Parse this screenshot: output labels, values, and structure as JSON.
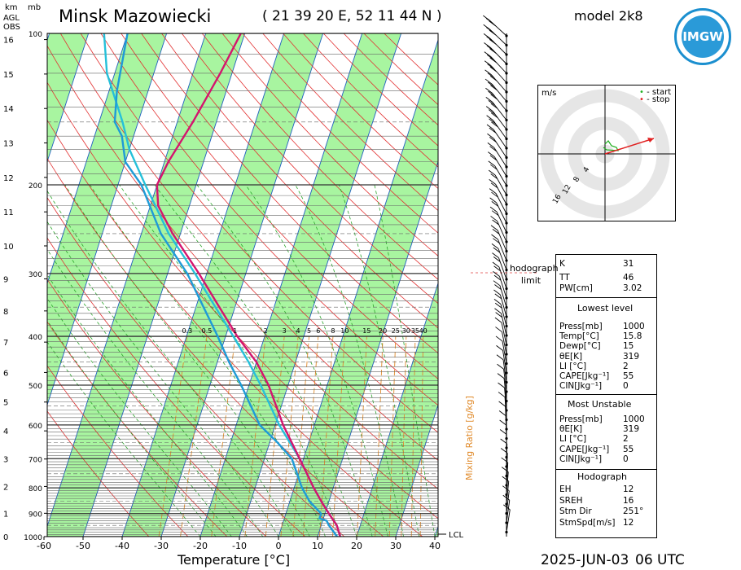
{
  "header": {
    "station": "Minsk Mazowiecki",
    "coords": "( 21 39 20 E, 52 11 44 N )",
    "model": "model 2k8",
    "logo": "IMGW",
    "date": "2025-JUN-03",
    "time": "06 UTC",
    "km_label": "km",
    "agl_label": "AGL",
    "obs_label": "OBS",
    "mb_label": "mb"
  },
  "chart_data": {
    "type": "skew-t",
    "xlabel": "Temperature [°C]",
    "xticks": [
      "-60",
      "-50",
      "-40",
      "-30",
      "-20",
      "-10",
      "0",
      "10",
      "20",
      "30",
      "40"
    ],
    "pressure_ticks": [
      100,
      200,
      300,
      400,
      500,
      600,
      700,
      800,
      900,
      1000
    ],
    "height_ticks_km": [
      0,
      1,
      2,
      3,
      4,
      5,
      6,
      7,
      8,
      9,
      10,
      11,
      12,
      13,
      14,
      15,
      16
    ],
    "mixing_ratio_label": "Mixing Ratio [g/kg]",
    "mixing_ratios": [
      "0.3",
      "0.5",
      "1",
      "2",
      "3",
      "4",
      "5",
      "6",
      "8",
      "10",
      "15",
      "20",
      "25",
      "30",
      "35",
      "40"
    ],
    "lcl_label": "LCL",
    "temperature": [
      [
        1000,
        15.8
      ],
      [
        950,
        14
      ],
      [
        900,
        11
      ],
      [
        850,
        8
      ],
      [
        800,
        5
      ],
      [
        700,
        -1
      ],
      [
        600,
        -8
      ],
      [
        500,
        -15
      ],
      [
        450,
        -20
      ],
      [
        400,
        -27
      ],
      [
        350,
        -34
      ],
      [
        300,
        -42
      ],
      [
        250,
        -52
      ],
      [
        220,
        -58
      ],
      [
        200,
        -60
      ],
      [
        180,
        -59
      ],
      [
        150,
        -56
      ],
      [
        120,
        -53
      ],
      [
        100,
        -51
      ]
    ],
    "dewpoint": [
      [
        1000,
        15
      ],
      [
        950,
        12
      ],
      [
        930,
        11
      ],
      [
        920,
        9
      ],
      [
        900,
        9
      ],
      [
        850,
        5
      ],
      [
        800,
        2
      ],
      [
        700,
        -3
      ],
      [
        650,
        -8
      ],
      [
        600,
        -14
      ],
      [
        500,
        -22
      ],
      [
        450,
        -27
      ],
      [
        400,
        -32
      ],
      [
        300,
        -45
      ],
      [
        250,
        -55
      ],
      [
        200,
        -64
      ],
      [
        180,
        -70
      ],
      [
        160,
        -73
      ],
      [
        150,
        -76
      ],
      [
        130,
        -78
      ],
      [
        100,
        -80
      ]
    ],
    "parcel": [
      [
        1000,
        15.8
      ],
      [
        950,
        14
      ],
      [
        900,
        11
      ],
      [
        850,
        8
      ],
      [
        800,
        5
      ],
      [
        700,
        -1
      ],
      [
        600,
        -9
      ],
      [
        500,
        -17
      ],
      [
        450,
        -22
      ],
      [
        400,
        -28
      ],
      [
        350,
        -35
      ],
      [
        300,
        -43
      ],
      [
        250,
        -53
      ],
      [
        200,
        -63
      ],
      [
        170,
        -70
      ],
      [
        150,
        -74
      ],
      [
        120,
        -82
      ],
      [
        100,
        -86
      ]
    ],
    "hodograph_limit": "hodograph limit",
    "hodograph": {
      "units": "m/s",
      "rings": [
        "4",
        "8",
        "12",
        "16"
      ],
      "legend_start": "- start",
      "legend_stop": "- stop"
    },
    "indices": {
      "K": "31",
      "TT": "46",
      "PW": "3.02",
      "K_label": "K",
      "TT_label": "TT",
      "PW_label": "PW[cm]"
    },
    "lowest_level": {
      "title": "Lowest level",
      "rows": [
        [
          "Press[mb]",
          "1000"
        ],
        [
          "Temp[°C]",
          "15.8"
        ],
        [
          "Dewp[°C]",
          "15"
        ],
        [
          "θE[K]",
          "319"
        ],
        [
          "LI [°C]",
          "2"
        ],
        [
          "CAPE[Jkg⁻¹]",
          "55"
        ],
        [
          "CIN[Jkg⁻¹]",
          "0"
        ]
      ]
    },
    "most_unstable": {
      "title": "Most Unstable",
      "rows": [
        [
          "Press[mb]",
          "1000"
        ],
        [
          "θE[K]",
          "319"
        ],
        [
          "LI [°C]",
          "2"
        ],
        [
          "CAPE[Jkg⁻¹]",
          "55"
        ],
        [
          "CIN[Jkg⁻¹]",
          "0"
        ]
      ]
    },
    "hodo_params": {
      "title": "Hodograph",
      "rows": [
        [
          "EH",
          "12"
        ],
        [
          "SREH",
          "16"
        ],
        [
          "Stm Dir",
          "251°"
        ],
        [
          "StmSpd[m/s]",
          "12"
        ]
      ]
    },
    "colors": {
      "temperature": "#d4146e",
      "dewpoint": "#1e9bd7",
      "parcel": "#26c0d9",
      "dry_band": "#a8f5a0",
      "isotherm": "#1f5fbf",
      "dry_adiabat": "#e23030",
      "moist_adiabat": "#2aa52a",
      "mixing": "#e08a2a"
    }
  }
}
